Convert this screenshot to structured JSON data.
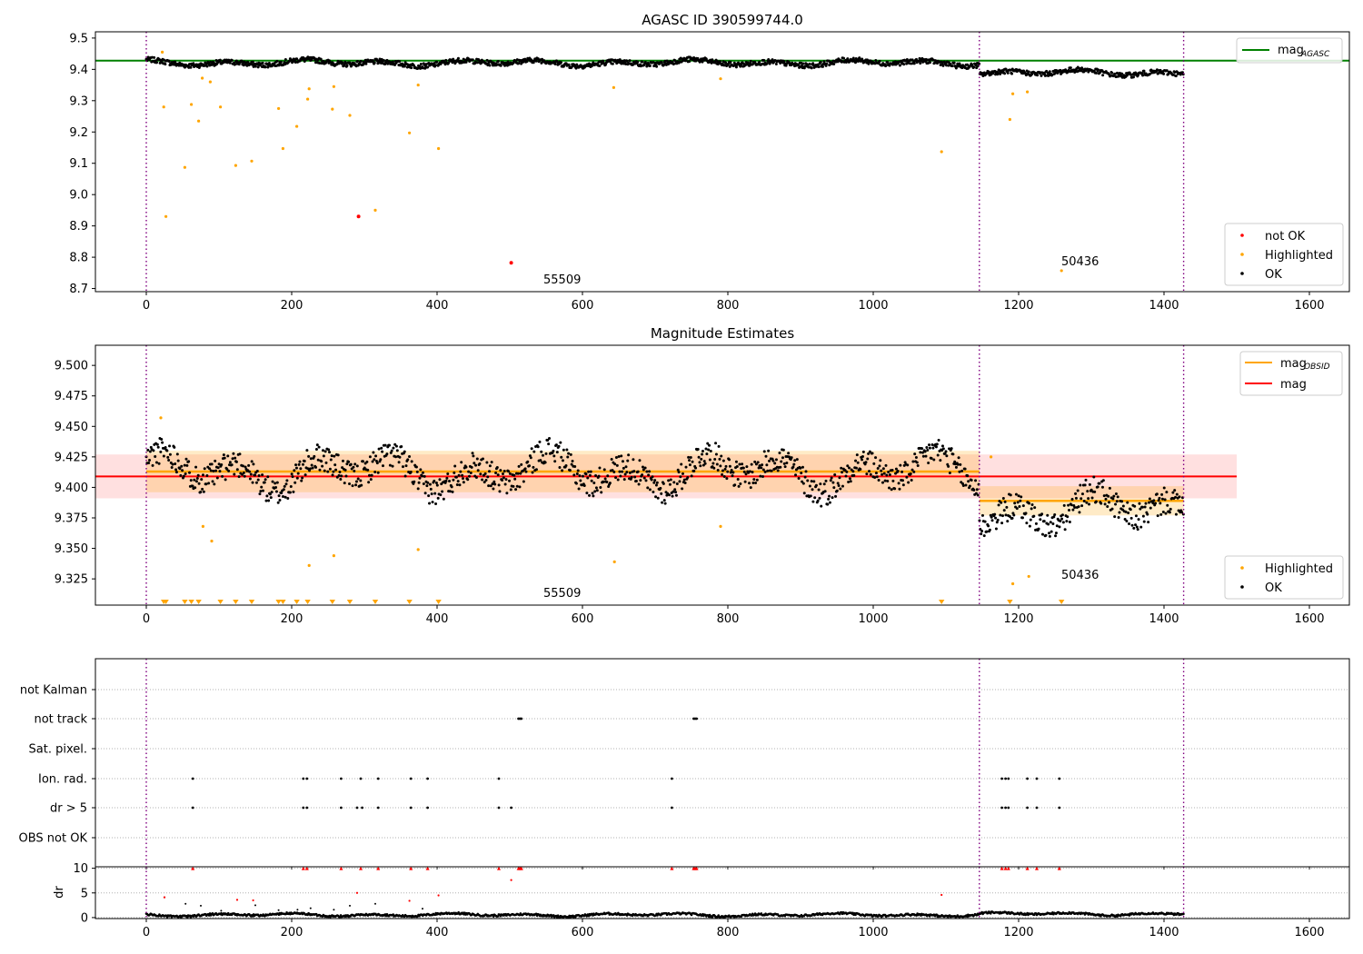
{
  "chart_data": [
    {
      "type": "scatter",
      "title": "AGASC ID 390599744.0",
      "xlabel": "",
      "ylabel": "",
      "xlim": [
        -70,
        1655
      ],
      "ylim": [
        8.69,
        9.52
      ],
      "xticks": [
        "0",
        "200",
        "400",
        "600",
        "800",
        "1000",
        "1200",
        "1400",
        "1600"
      ],
      "yticks": [
        "8.7",
        "8.8",
        "8.9",
        "9.0",
        "9.1",
        "9.2",
        "9.3",
        "9.4",
        "9.5"
      ],
      "grid": false,
      "vlines": [
        0,
        1146,
        1427
      ],
      "hline": {
        "name": "mag_AGASC",
        "value": 9.428,
        "color": "#008000"
      },
      "annotations": [
        {
          "text": "55509",
          "x": 545,
          "y": 8.715
        },
        {
          "text": "50436",
          "x": 1258,
          "y": 8.77
        }
      ],
      "legends": [
        {
          "placement": "top-right",
          "entries": [
            "mag",
            "AGASC"
          ]
        },
        {
          "placement": "lower-right",
          "entries": [
            "not OK",
            "Highlighted",
            "OK"
          ]
        }
      ],
      "ok_color": "#000000",
      "highlighted_color": "#ffa500",
      "not_ok_color": "#ff0000",
      "ok_series_segments": [
        {
          "x_from": 0,
          "x_to": 1146,
          "base": 9.421
        },
        {
          "x_from": 1146,
          "x_to": 1427,
          "base": 9.389
        }
      ],
      "highlighted_points": [
        [
          22,
          9.455
        ],
        [
          24,
          9.28
        ],
        [
          27,
          8.93
        ],
        [
          53,
          9.087
        ],
        [
          62,
          9.288
        ],
        [
          72,
          9.235
        ],
        [
          77,
          9.372
        ],
        [
          88,
          9.36
        ],
        [
          102,
          9.28
        ],
        [
          123,
          9.093
        ],
        [
          145,
          9.107
        ],
        [
          182,
          9.275
        ],
        [
          188,
          9.147
        ],
        [
          207,
          9.218
        ],
        [
          222,
          9.305
        ],
        [
          224,
          9.338
        ],
        [
          256,
          9.273
        ],
        [
          258,
          9.345
        ],
        [
          280,
          9.253
        ],
        [
          315,
          8.95
        ],
        [
          362,
          9.197
        ],
        [
          374,
          9.35
        ],
        [
          402,
          9.147
        ],
        [
          643,
          9.342
        ],
        [
          790,
          9.37
        ],
        [
          1094,
          9.137
        ],
        [
          1188,
          9.24
        ],
        [
          1192,
          9.322
        ],
        [
          1212,
          9.328
        ],
        [
          1259,
          8.757
        ]
      ],
      "not_ok_points": [
        [
          292,
          8.93
        ],
        [
          502,
          8.782
        ]
      ]
    },
    {
      "type": "scatter",
      "title": "Magnitude Estimates",
      "xlabel": "",
      "ylabel": "",
      "xlim": [
        -70,
        1655
      ],
      "ylim": [
        9.3035,
        9.5165
      ],
      "xticks": [
        "0",
        "200",
        "400",
        "600",
        "800",
        "1000",
        "1200",
        "1400",
        "1600"
      ],
      "yticks": [
        "9.325",
        "9.350",
        "9.375",
        "9.400",
        "9.425",
        "9.450",
        "9.475",
        "9.500"
      ],
      "grid": false,
      "vlines": [
        0,
        1146,
        1427
      ],
      "mag": {
        "name": "mag",
        "value": 9.409,
        "band": [
          9.391,
          9.427
        ],
        "x_extent": [
          -70,
          1500
        ],
        "color": "#ff0000"
      },
      "mag_obsid": [
        {
          "x_from": 0,
          "x_to": 1146,
          "value": 9.413,
          "band": [
            9.396,
            9.43
          ]
        },
        {
          "x_from": 1146,
          "x_to": 1427,
          "value": 9.389,
          "band": [
            9.377,
            9.401
          ]
        }
      ],
      "mag_obsid_color": "#ffa500",
      "annotations": [
        {
          "text": "55509",
          "x": 545,
          "y": 9.311
        },
        {
          "text": "50436",
          "x": 1258,
          "y": 9.3255
        }
      ],
      "legends": [
        {
          "placement": "top-right",
          "entries": [
            "mag",
            "OBSID",
            "mag"
          ]
        },
        {
          "placement": "lower-right",
          "entries": [
            "Highlighted",
            "OK"
          ]
        }
      ],
      "highlighted_points": [
        [
          20,
          9.457
        ],
        [
          78,
          9.368
        ],
        [
          90,
          9.356
        ],
        [
          224,
          9.336
        ],
        [
          258,
          9.344
        ],
        [
          374,
          9.349
        ],
        [
          644,
          9.339
        ],
        [
          790,
          9.368
        ],
        [
          1162,
          9.425
        ],
        [
          1192,
          9.321
        ],
        [
          1214,
          9.327
        ]
      ],
      "below_axis_markers": [
        24,
        27,
        53,
        62,
        72,
        102,
        123,
        145,
        182,
        188,
        207,
        222,
        256,
        280,
        315,
        362,
        402,
        1094,
        1188,
        1259
      ]
    },
    {
      "type": "scatter",
      "title": "",
      "xlabel": "",
      "ylabel": "",
      "xlim": [
        -70,
        1655
      ],
      "xticks": [
        "0",
        "200",
        "400",
        "600",
        "800",
        "1000",
        "1200",
        "1400",
        "1600"
      ],
      "vlines": [
        0,
        1146,
        1427
      ],
      "flag_categories": [
        "not Kalman",
        "not track",
        "Sat. pixel.",
        "Ion. rad.",
        "dr > 5",
        "OBS not OK"
      ],
      "flag_points": {
        "not Kalman": [],
        "not track": [
          512,
          514,
          516,
          753,
          755,
          757
        ],
        "Sat. pixel.": [],
        "Ion. rad.": [
          64,
          216,
          221,
          268,
          295,
          319,
          364,
          387,
          485,
          723,
          1177,
          1182,
          1186,
          1212,
          1225,
          1256
        ],
        "dr > 5": [
          64,
          216,
          221,
          268,
          290,
          297,
          319,
          364,
          387,
          485,
          502,
          723,
          1177,
          1182,
          1186,
          1212,
          1225,
          1256
        ],
        "OBS not OK": []
      }
    },
    {
      "type": "scatter",
      "title": "",
      "xlabel": "",
      "ylabel": "dr",
      "xlim": [
        -70,
        1655
      ],
      "ylim": [
        -0.2,
        10.3
      ],
      "xticks": [
        "0",
        "200",
        "400",
        "600",
        "800",
        "1000",
        "1200",
        "1400",
        "1600"
      ],
      "yticks": [
        "0",
        "5",
        "10"
      ],
      "vlines": [
        0,
        1146,
        1427
      ],
      "ok_points": [
        [
          25,
          4.1
        ],
        [
          54,
          2.8
        ],
        [
          75,
          2.4
        ],
        [
          103,
          1.4
        ],
        [
          150,
          2.5
        ],
        [
          182,
          1.5
        ],
        [
          208,
          1.6
        ],
        [
          226,
          1.9
        ],
        [
          258,
          1.6
        ],
        [
          280,
          2.4
        ],
        [
          315,
          2.8
        ],
        [
          380,
          1.8
        ]
      ],
      "capped_points_red": [
        64,
        216,
        221,
        268,
        295,
        319,
        364,
        387,
        485,
        512,
        514,
        516,
        723,
        753,
        755,
        757,
        1177,
        1182,
        1186,
        1212,
        1225,
        1256
      ],
      "red_points": [
        [
          25,
          4.1
        ],
        [
          125,
          3.6
        ],
        [
          147,
          3.5
        ],
        [
          290,
          5.0
        ],
        [
          362,
          3.4
        ],
        [
          402,
          4.5
        ],
        [
          502,
          7.6
        ],
        [
          1094,
          4.6
        ]
      ]
    }
  ]
}
